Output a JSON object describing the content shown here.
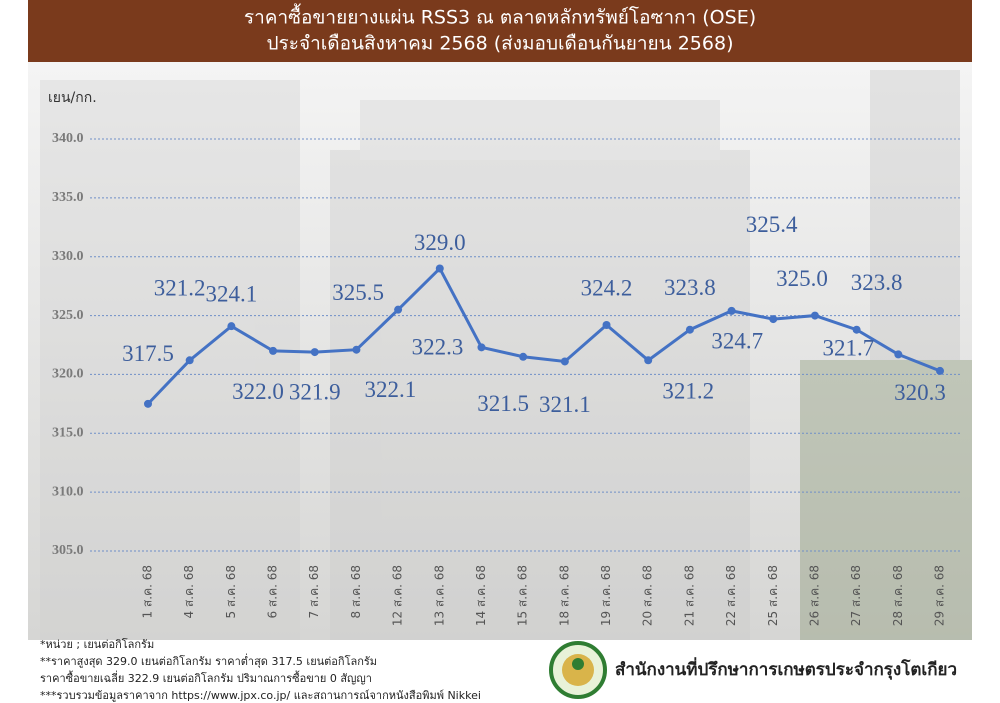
{
  "chart_data": {
    "type": "line",
    "title": "ราคาซื้อขายยางแผ่น RSS3 ณ ตลาดหลักทรัพย์โอซากา (OSE)",
    "subtitle": "ประจำเดือนสิงหาคม 2568 (ส่งมอบเดือนกันยายน 2568)",
    "y_label": "เยน/กก.",
    "categories": [
      "1 ส.ค. 68",
      "4 ส.ค. 68",
      "5 ส.ค. 68",
      "6 ส.ค. 68",
      "7 ส.ค. 68",
      "8 ส.ค. 68",
      "12 ส.ค. 68",
      "13 ส.ค. 68",
      "14 ส.ค. 68",
      "15 ส.ค. 68",
      "18 ส.ค. 68",
      "19 ส.ค. 68",
      "20 ส.ค. 68",
      "21 ส.ค. 68",
      "22 ส.ค. 68",
      "25 ส.ค. 68",
      "26 ส.ค. 68",
      "27 ส.ค. 68",
      "28 ส.ค. 68",
      "29 ส.ค. 68"
    ],
    "values": [
      317.5,
      321.2,
      324.1,
      322.0,
      321.9,
      322.1,
      325.5,
      329.0,
      322.3,
      321.5,
      321.1,
      324.2,
      321.2,
      323.8,
      325.4,
      324.7,
      325.0,
      323.8,
      321.7,
      320.3
    ],
    "value_labels": [
      "317.5",
      "321.2",
      "324.1",
      "322.0",
      "321.9",
      "322.1",
      "325.5",
      "329.0",
      "322.3",
      "321.5",
      "321.1",
      "324.2",
      "321.2",
      "323.8",
      "325.4",
      "324.7",
      "325.0",
      "323.8",
      "321.7",
      "320.3"
    ],
    "color": "#4472c4",
    "ylim": [
      305,
      340
    ],
    "yticks": [
      {
        "value": 305,
        "label": "305.0"
      },
      {
        "value": 310,
        "label": "310.0"
      },
      {
        "value": 315,
        "label": "315.0"
      },
      {
        "value": 320,
        "label": "320.0"
      },
      {
        "value": 325,
        "label": "325.0"
      },
      {
        "value": 330,
        "label": "330.0"
      },
      {
        "value": 335,
        "label": "335.0"
      },
      {
        "value": 340,
        "label": "340.0"
      }
    ],
    "grid": true
  },
  "footer": {
    "notes": [
      "*หน่วย ; เยนต่อกิโลกรัม",
      "**ราคาสูงสุด 329.0 เยนต่อกิโลกรัม ราคาต่ำสุด 317.5 เยนต่อกิโลกรัม",
      "ราคาซื้อขายเฉลี่ย 322.9 เยนต่อกิโลกรัม ปริมาณการซื้อขาย 0 สัญญา",
      "***รวบรวมข้อมูลราคาจาก https://www.jpx.co.jp/ และสถานการณ์จากหนังสือพิมพ์ Nikkei"
    ],
    "organization": "สำนักงานที่ปรึกษาการเกษตรประจำกรุงโตเกียว"
  }
}
